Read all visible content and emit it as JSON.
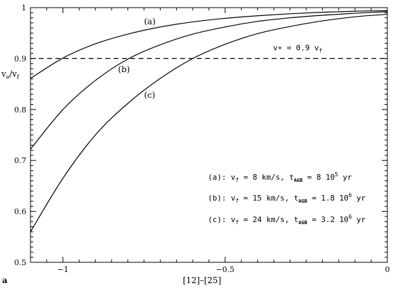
{
  "chart_data": {
    "type": "line",
    "panel_label": "a",
    "xlabel": "[12]–[25]",
    "xlim": [
      -1.1,
      0
    ],
    "ylim": [
      0.5,
      1.0
    ],
    "x_ticks": [
      {
        "value": -1,
        "label": "−1"
      },
      {
        "value": -0.5,
        "label": "−0.5"
      },
      {
        "value": 0,
        "label": "0"
      }
    ],
    "y_ticks": [
      {
        "value": 0.5,
        "label": "0.5"
      },
      {
        "value": 0.6,
        "label": "0.6"
      },
      {
        "value": 0.7,
        "label": "0.7"
      },
      {
        "value": 0.8,
        "label": "0.8"
      },
      {
        "value": 0.9,
        "label": "0.9"
      },
      {
        "value": 1.0,
        "label": "1"
      }
    ],
    "y_label_parts": {
      "main": "v",
      "sub": "e",
      "mid": "/v",
      "sub2": "f"
    },
    "series": [
      {
        "name": "(a)",
        "x": [
          -1.1,
          -1.0,
          -0.9,
          -0.8,
          -0.7,
          -0.6,
          -0.5,
          -0.4,
          -0.3,
          -0.2,
          -0.1,
          0.0
        ],
        "y": [
          0.861,
          0.901,
          0.929,
          0.948,
          0.962,
          0.972,
          0.979,
          0.984,
          0.988,
          0.991,
          0.993,
          0.994
        ]
      },
      {
        "name": "(b)",
        "x": [
          -1.1,
          -1.0,
          -0.9,
          -0.8,
          -0.7,
          -0.6,
          -0.5,
          -0.4,
          -0.3,
          -0.2,
          -0.1,
          0.0
        ],
        "y": [
          0.722,
          0.8,
          0.857,
          0.899,
          0.927,
          0.948,
          0.962,
          0.973,
          0.98,
          0.985,
          0.989,
          0.992
        ]
      },
      {
        "name": "(c)",
        "x": [
          -1.1,
          -1.0,
          -0.9,
          -0.8,
          -0.7,
          -0.6,
          -0.5,
          -0.4,
          -0.3,
          -0.2,
          -0.1,
          0.0
        ],
        "y": [
          0.56,
          0.665,
          0.75,
          0.812,
          0.861,
          0.9,
          0.928,
          0.949,
          0.963,
          0.974,
          0.982,
          0.987
        ]
      }
    ],
    "series_labels": [
      {
        "text": "(a)",
        "x": -0.75,
        "y": 0.967
      },
      {
        "text": "(b)",
        "x": -0.83,
        "y": 0.873
      },
      {
        "text": "(c)",
        "x": -0.75,
        "y": 0.823
      }
    ],
    "reference_line": {
      "y": 0.9,
      "style": "dashed",
      "label": "v∗ = 0.9 v"
    },
    "annotations": [
      {
        "prefix": "(a): v",
        "vf": "=  8 km/s, t",
        "tagb": " =   8 10",
        "exp": "5",
        "unit": " yr"
      },
      {
        "prefix": "(b): v",
        "vf": "= 15 km/s, t",
        "tagb": " = 1.8 10",
        "exp": "6",
        "unit": " yr"
      },
      {
        "prefix": "(c): v",
        "vf": "= 24 km/s, t",
        "tagb": " = 3.2 10",
        "exp": "6",
        "unit": " yr"
      }
    ],
    "sub_f": "f",
    "sub_agb": "AGB",
    "grid": false,
    "legend": "none"
  }
}
